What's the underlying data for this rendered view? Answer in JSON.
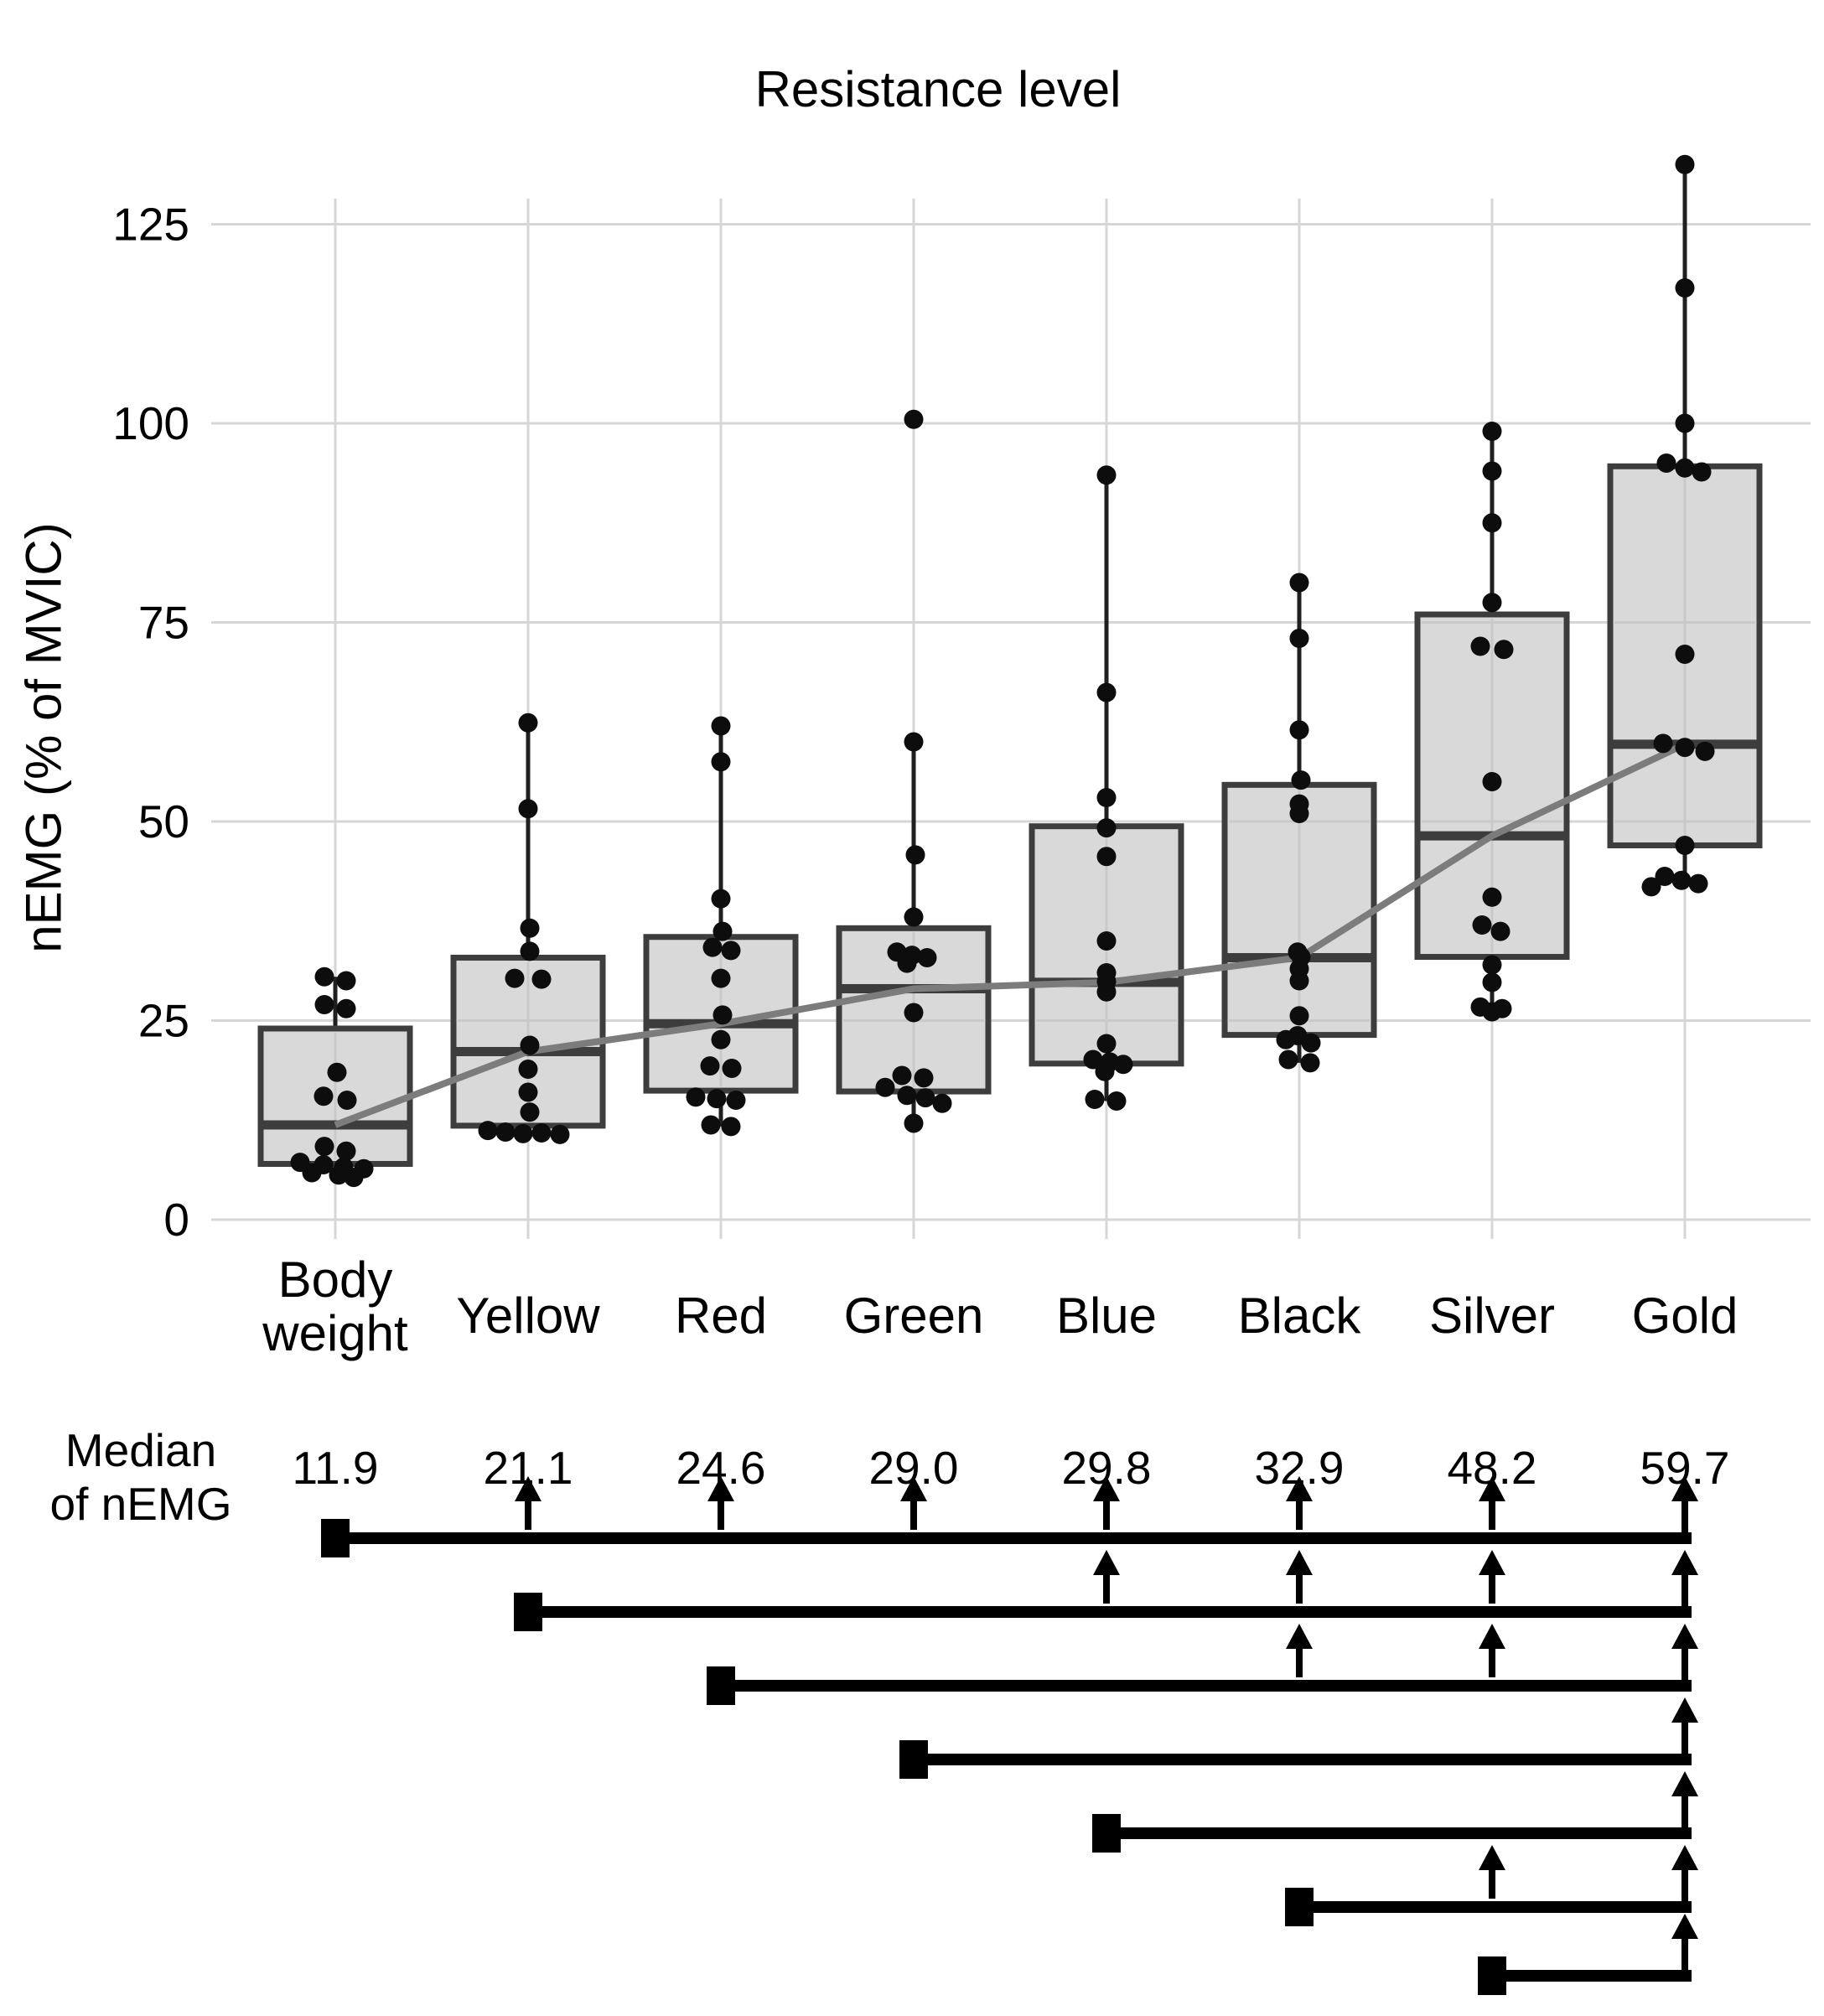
{
  "title": "Resistance level",
  "y_axis": {
    "label": "nEMG (% of MVIC)",
    "tick_labels": [
      "0",
      "25",
      "50",
      "75",
      "100",
      "125"
    ]
  },
  "x_axis": {
    "categories": [
      "Body weight",
      "Yellow",
      "Red",
      "Green",
      "Blue",
      "Black",
      "Silver",
      "Gold"
    ]
  },
  "median_row": {
    "label_line1": "Median",
    "label_line2": "of nEMG",
    "values": [
      "11.9",
      "21.1",
      "24.6",
      "29.0",
      "29.8",
      "32.9",
      "48.2",
      "59.7"
    ]
  },
  "chart_data": {
    "type": "box",
    "title": "Resistance level",
    "xlabel": "",
    "ylabel": "nEMG (% of MVIC)",
    "ylim": [
      0,
      135
    ],
    "yticks": [
      0,
      25,
      50,
      75,
      100,
      125
    ],
    "grid": "on",
    "categories": [
      "Body weight",
      "Yellow",
      "Red",
      "Green",
      "Blue",
      "Black",
      "Silver",
      "Gold"
    ],
    "medians": [
      11.9,
      21.1,
      24.6,
      29.0,
      29.8,
      32.9,
      48.2,
      59.7
    ],
    "trend_line": "grey line connecting the median of each category",
    "series": [
      {
        "name": "Body weight",
        "whisker_low": 5.3,
        "q1": 7.0,
        "median": 11.9,
        "q3": 24.0,
        "whisker_high": 30.5,
        "points": [
          [
            30.5,
            -13
          ],
          [
            30.0,
            13
          ],
          [
            27.0,
            -13
          ],
          [
            26.5,
            13
          ],
          [
            18.5,
            2
          ],
          [
            15.5,
            -14
          ],
          [
            15.0,
            14
          ],
          [
            9.2,
            -13
          ],
          [
            8.6,
            13
          ],
          [
            7.2,
            -42
          ],
          [
            6.9,
            -14
          ],
          [
            6.6,
            10
          ],
          [
            6.4,
            34
          ],
          [
            5.9,
            -28
          ],
          [
            5.6,
            4
          ],
          [
            5.3,
            22
          ]
        ]
      },
      {
        "name": "Yellow",
        "whisker_low": 10.7,
        "q1": 11.8,
        "median": 21.1,
        "q3": 32.9,
        "whisker_high": 62.4,
        "points": [
          [
            62.4,
            0
          ],
          [
            51.6,
            0
          ],
          [
            36.6,
            2
          ],
          [
            33.7,
            2
          ],
          [
            30.3,
            -16
          ],
          [
            30.2,
            16
          ],
          [
            21.9,
            2
          ],
          [
            18.9,
            0
          ],
          [
            16.0,
            0
          ],
          [
            13.5,
            2
          ],
          [
            11.2,
            -48
          ],
          [
            11.0,
            -27
          ],
          [
            10.8,
            -6
          ],
          [
            10.9,
            16
          ],
          [
            10.7,
            38
          ]
        ]
      },
      {
        "name": "Red",
        "whisker_low": 11.7,
        "q1": 16.2,
        "median": 24.6,
        "q3": 35.5,
        "whisker_high": 62.0,
        "points": [
          [
            62.0,
            0
          ],
          [
            57.5,
            0
          ],
          [
            40.3,
            0
          ],
          [
            36.2,
            2
          ],
          [
            34.2,
            -10
          ],
          [
            33.8,
            12
          ],
          [
            30.3,
            0
          ],
          [
            25.7,
            2
          ],
          [
            22.6,
            0
          ],
          [
            19.3,
            -13
          ],
          [
            19.0,
            13
          ],
          [
            15.4,
            -30
          ],
          [
            15.2,
            -5
          ],
          [
            15.0,
            18
          ],
          [
            11.9,
            -12
          ],
          [
            11.7,
            12
          ]
        ]
      },
      {
        "name": "Green",
        "whisker_low": 12.1,
        "q1": 16.1,
        "median": 29.0,
        "q3": 36.6,
        "whisker_high": 60.0,
        "points": [
          [
            100.5,
            0
          ],
          [
            60.0,
            0
          ],
          [
            45.8,
            2
          ],
          [
            38.0,
            0
          ],
          [
            33.6,
            -20
          ],
          [
            33.2,
            -2
          ],
          [
            32.9,
            16
          ],
          [
            32.2,
            -8
          ],
          [
            26.0,
            0
          ],
          [
            18.1,
            -14
          ],
          [
            17.8,
            12
          ],
          [
            16.6,
            -34
          ],
          [
            15.6,
            -8
          ],
          [
            15.3,
            14
          ],
          [
            14.6,
            34
          ],
          [
            12.1,
            0
          ]
        ]
      },
      {
        "name": "Blue",
        "whisker_low": 14.9,
        "q1": 19.6,
        "median": 29.8,
        "q3": 49.4,
        "whisker_high": 93.5,
        "points": [
          [
            93.5,
            0
          ],
          [
            66.2,
            0
          ],
          [
            53.0,
            0
          ],
          [
            49.2,
            0
          ],
          [
            45.6,
            0
          ],
          [
            35.0,
            0
          ],
          [
            31.0,
            0
          ],
          [
            29.9,
            0
          ],
          [
            28.6,
            0
          ],
          [
            22.1,
            0
          ],
          [
            20.1,
            -16
          ],
          [
            19.8,
            4
          ],
          [
            19.5,
            20
          ],
          [
            18.6,
            -2
          ],
          [
            15.1,
            -14
          ],
          [
            14.9,
            12
          ]
        ]
      },
      {
        "name": "Black",
        "whisker_low": 19.7,
        "q1": 23.2,
        "median": 32.9,
        "q3": 54.6,
        "whisker_high": 80.0,
        "points": [
          [
            80.0,
            0
          ],
          [
            73.0,
            0
          ],
          [
            61.5,
            0
          ],
          [
            55.2,
            2
          ],
          [
            52.2,
            0
          ],
          [
            51.0,
            0
          ],
          [
            33.6,
            -2
          ],
          [
            33.0,
            2
          ],
          [
            31.5,
            0
          ],
          [
            30.0,
            0
          ],
          [
            25.6,
            0
          ],
          [
            23.1,
            -2
          ],
          [
            22.6,
            -16
          ],
          [
            22.2,
            14
          ],
          [
            20.1,
            -13
          ],
          [
            19.7,
            13
          ]
        ]
      },
      {
        "name": "Silver",
        "whisker_low": 26.1,
        "q1": 33.0,
        "median": 48.2,
        "q3": 76.0,
        "whisker_high": 99.0,
        "points": [
          [
            99.0,
            0
          ],
          [
            94.0,
            0
          ],
          [
            87.5,
            0
          ],
          [
            77.5,
            0
          ],
          [
            72.0,
            -14
          ],
          [
            71.6,
            14
          ],
          [
            55.0,
            0
          ],
          [
            40.5,
            0
          ],
          [
            37.0,
            -12
          ],
          [
            36.2,
            10
          ],
          [
            32.0,
            0
          ],
          [
            29.8,
            0
          ],
          [
            26.7,
            -14
          ],
          [
            26.5,
            12
          ],
          [
            26.1,
            0
          ]
        ]
      },
      {
        "name": "Gold",
        "whisker_low": 41.8,
        "q1": 47.0,
        "median": 59.7,
        "q3": 94.6,
        "whisker_high": 132.5,
        "points": [
          [
            132.5,
            0
          ],
          [
            117.0,
            0
          ],
          [
            100.0,
            0
          ],
          [
            95.0,
            -22
          ],
          [
            94.4,
            0
          ],
          [
            93.9,
            20
          ],
          [
            71.0,
            0
          ],
          [
            59.8,
            -26
          ],
          [
            59.3,
            0
          ],
          [
            58.8,
            24
          ],
          [
            47.0,
            0
          ],
          [
            43.1,
            -24
          ],
          [
            42.6,
            -4
          ],
          [
            42.2,
            16
          ],
          [
            41.8,
            -40
          ]
        ]
      }
    ],
    "comparisons": [
      {
        "from": "Body weight",
        "arrows_at": [
          "Yellow",
          "Red",
          "Green",
          "Blue",
          "Black",
          "Silver",
          "Gold"
        ],
        "line_ends_at": "Gold"
      },
      {
        "from": "Yellow",
        "arrows_at": [
          "Blue",
          "Black",
          "Silver",
          "Gold"
        ],
        "line_ends_at": "Gold"
      },
      {
        "from": "Red",
        "arrows_at": [
          "Black",
          "Silver",
          "Gold"
        ],
        "line_ends_at": "Gold"
      },
      {
        "from": "Green",
        "arrows_at": [
          "Gold"
        ],
        "line_ends_at": "Gold"
      },
      {
        "from": "Blue",
        "arrows_at": [
          "Gold"
        ],
        "line_ends_at": "Gold"
      },
      {
        "from": "Black",
        "arrows_at": [
          "Silver",
          "Gold"
        ],
        "line_ends_at": "Gold"
      },
      {
        "from": "Silver",
        "arrows_at": [
          "Gold"
        ],
        "line_ends_at": "Gold"
      }
    ]
  },
  "colors": {
    "background": "#ffffff",
    "box_fill": "#d9d9d9",
    "box_border": "#3d3d3d",
    "whisker": "#1f1f1f",
    "point": "#0d0d0d",
    "trend_line": "#7c7c7c",
    "grid": "#d6d6d6",
    "grid_over_box": "#c9c9c9",
    "significance": "#000000",
    "text": "#000000"
  }
}
